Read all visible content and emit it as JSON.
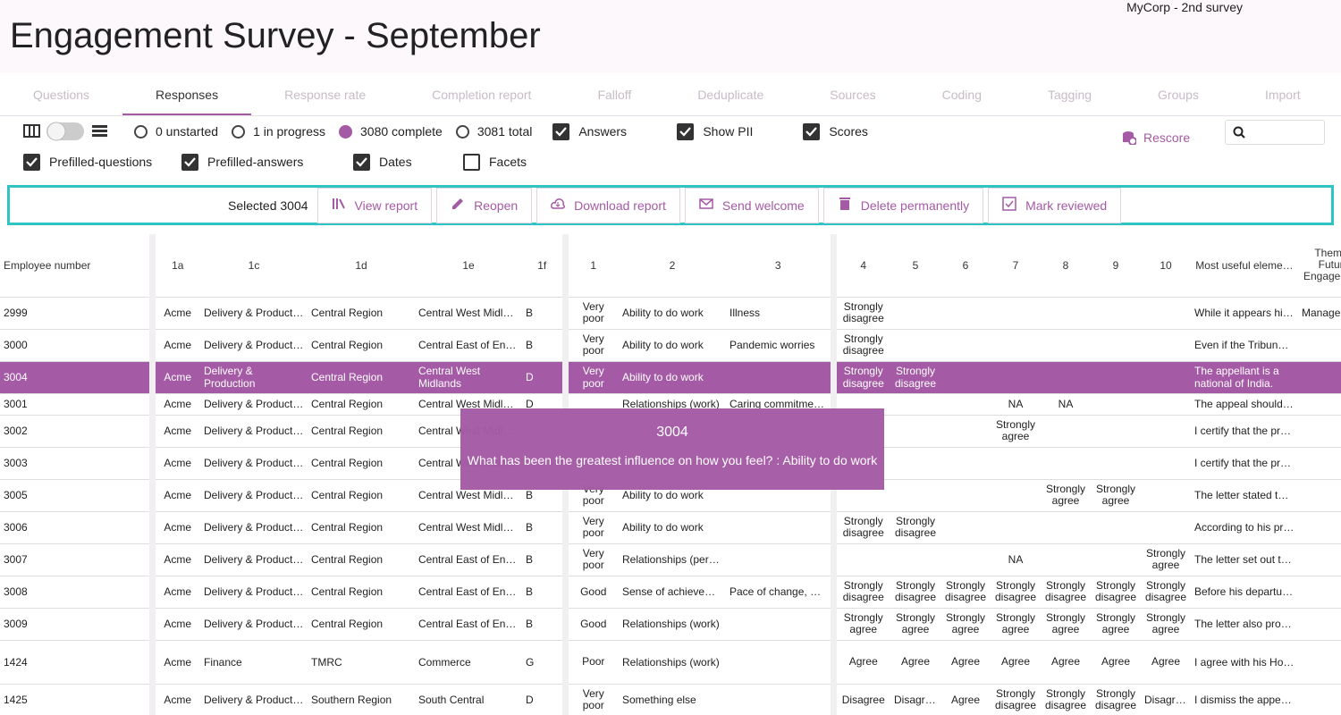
{
  "header": {
    "title": "Engagement Survey - September",
    "survey": "MyCorp - 2nd survey"
  },
  "tabs": {
    "items": [
      "Questions",
      "Responses",
      "Response rate",
      "Completion report",
      "Falloff",
      "Deduplicate",
      "Sources",
      "Coding",
      "Tagging",
      "Groups",
      "Import"
    ],
    "active": 1
  },
  "status_filters": [
    {
      "label": "0 unstarted",
      "selected": false
    },
    {
      "label": "1 in progress",
      "selected": false
    },
    {
      "label": "3080 complete",
      "selected": true
    },
    {
      "label": "3081 total",
      "selected": false
    }
  ],
  "options": [
    {
      "label": "Answers",
      "checked": true
    },
    {
      "label": "Show PII",
      "checked": true
    },
    {
      "label": "Scores",
      "checked": true
    },
    {
      "label": "Prefilled-questions",
      "checked": true
    },
    {
      "label": "Prefilled-answers",
      "checked": true
    },
    {
      "label": "Dates",
      "checked": true
    },
    {
      "label": "Facets",
      "checked": false
    }
  ],
  "rescore": "Rescore",
  "selection": {
    "label": "Selected 3004",
    "actions": [
      "View report",
      "Reopen",
      "Download report",
      "Send welcome",
      "Delete permanently",
      "Mark reviewed"
    ]
  },
  "table": {
    "columns": [
      "Employee number",
      "1a",
      "1c",
      "1d",
      "1e",
      "1f",
      "1",
      "2",
      "3",
      "4",
      "5",
      "6",
      "7",
      "8",
      "9",
      "10",
      "Most useful eleme…",
      "Themes Future Engagement"
    ],
    "rows": [
      {
        "selected": false,
        "cells": [
          "2999",
          "Acme",
          "Delivery & Production",
          "Central Region",
          "Central West Midlands",
          "B",
          "Very poor",
          "Ability to do work",
          "Illness",
          "Strongly disagree",
          null,
          null,
          null,
          null,
          null,
          null,
          "While it appears hi…",
          "Manage"
        ]
      },
      {
        "selected": false,
        "cells": [
          "3000",
          "Acme",
          "Delivery & Production",
          "Central Region",
          "Central East of England",
          "B",
          "Very poor",
          "Ability to do work",
          "Pandemic worries",
          "Strongly disagree",
          null,
          null,
          null,
          null,
          null,
          null,
          "Even if the Tribun…",
          null
        ]
      },
      {
        "selected": true,
        "cells": [
          "3004",
          "Acme",
          "Delivery & Production",
          "Central Region",
          "Central West Midlands",
          "D",
          "Very poor",
          "Ability to do work",
          null,
          "Strongly disagree",
          "Strongly disagree",
          null,
          null,
          null,
          null,
          null,
          "The appellant is a national of India.",
          null
        ]
      },
      {
        "selected": false,
        "cells": [
          "3001",
          "Acme",
          "Delivery & Production",
          "Central Region",
          "Central West Midlands",
          "D",
          null,
          "Relationships (work)",
          "Caring commitments",
          null,
          null,
          null,
          "NA",
          "NA",
          null,
          null,
          "The appeal should…",
          null
        ]
      },
      {
        "selected": false,
        "cells": [
          "3002",
          "Acme",
          "Delivery & Production",
          "Central Region",
          "Central West Midlands",
          null,
          null,
          null,
          null,
          null,
          null,
          null,
          "Strongly agree",
          null,
          null,
          null,
          "I certify that the pr…",
          null
        ]
      },
      {
        "selected": false,
        "cells": [
          "3003",
          "Acme",
          "Delivery & Production",
          "Central Region",
          "Central West Midlands",
          null,
          null,
          null,
          null,
          null,
          null,
          null,
          null,
          null,
          null,
          null,
          "I certify that the pr…",
          null
        ]
      },
      {
        "selected": false,
        "cells": [
          "3005",
          "Acme",
          "Delivery & Production",
          "Central Region",
          "Central West Midlands",
          "B",
          "Very poor",
          "Ability to do work",
          null,
          null,
          null,
          null,
          null,
          "Strongly agree",
          "Strongly agree",
          null,
          "The letter stated t…",
          null
        ]
      },
      {
        "selected": false,
        "cells": [
          "3006",
          "Acme",
          "Delivery & Production",
          "Central Region",
          "Central West Midlands",
          "B",
          "Very poor",
          "Ability to do work",
          null,
          "Strongly disagree",
          "Strongly disagree",
          null,
          null,
          null,
          null,
          null,
          "According to his pr…",
          null
        ]
      },
      {
        "selected": false,
        "cells": [
          "3007",
          "Acme",
          "Delivery & Production",
          "Central Region",
          "Central East of England",
          "B",
          "Very poor",
          "Relationships (per…",
          null,
          null,
          null,
          null,
          "NA",
          null,
          null,
          "Strongly agree",
          "The letter set out t…",
          null
        ]
      },
      {
        "selected": false,
        "cells": [
          "3008",
          "Acme",
          "Delivery & Production",
          "Central Region",
          "Central East of England",
          "B",
          "Good",
          "Sense of achieve…",
          "Pace of change, U…",
          "Strongly disagree",
          "Strongly disagree",
          "Strongly disagree",
          "Strongly disagree",
          "Strongly disagree",
          "Strongly disagree",
          "Strongly disagree",
          "Before his departu…",
          null
        ]
      },
      {
        "selected": false,
        "cells": [
          "3009",
          "Acme",
          "Delivery & Production",
          "Central Region",
          "Central East of England",
          "B",
          "Good",
          "Relationships (work)",
          null,
          "Strongly agree",
          "Strongly agree",
          "Strongly agree",
          "Strongly agree",
          "Strongly agree",
          "Strongly agree",
          "Strongly agree",
          "The letter also pro…",
          null
        ]
      },
      {
        "selected": false,
        "cells": [
          "1424",
          "Acme",
          "Finance",
          "TMRC",
          "Commerce",
          "G",
          "Poor",
          "Relationships (work)",
          null,
          "Agree",
          "Agree",
          "Agree",
          "Agree",
          "Agree",
          "Agree",
          "Agree",
          "I agree with his Ho…",
          null
        ]
      },
      {
        "selected": false,
        "cells": [
          "1425",
          "Acme",
          "Delivery & Production",
          "Southern Region",
          "South Central",
          "D",
          "Very poor",
          "Something else",
          null,
          "Disagree",
          "Disagree",
          "Agree",
          "Strongly disagree",
          "Strongly disagree",
          "Strongly disagree",
          "Disagree",
          "I dismiss the appe…",
          null
        ]
      }
    ]
  },
  "tooltip": {
    "title": "3004",
    "text": "What has been the greatest influence on how you feel? : Ability to do work"
  }
}
